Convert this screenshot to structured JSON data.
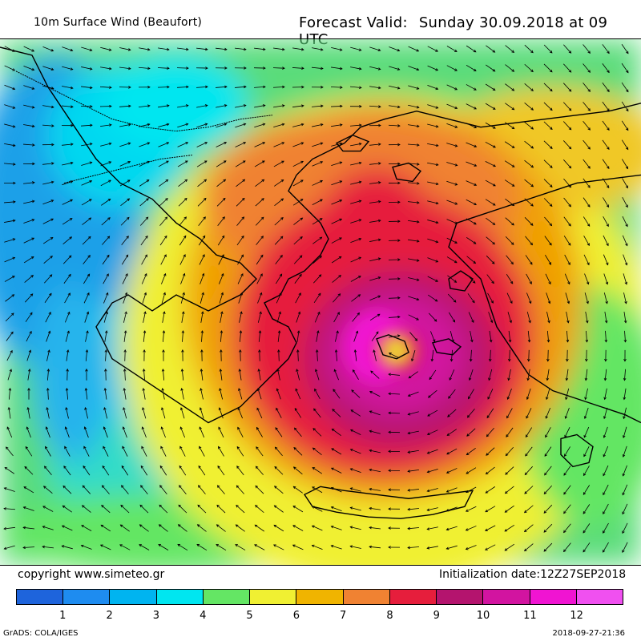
{
  "header": {
    "title": "10m Surface Wind (Beaufort)",
    "valid_label": "Forecast Valid:",
    "valid_value": "Sunday 30.09.2018 at 09 UTC"
  },
  "footer": {
    "copyright": "copyright www.simeteo.gr",
    "initialization": "Initialization date:12Z27SEP2018",
    "software": "GrADS: COLA/IGES",
    "timestamp": "2018-09-27-21:36"
  },
  "colorbar": {
    "colors": [
      "#1e64dc",
      "#1e8cf0",
      "#00b4f0",
      "#00e6f0",
      "#64e664",
      "#f0f032",
      "#f0b400",
      "#f08232",
      "#e61e3c",
      "#b4146e",
      "#d214a0",
      "#f014d2",
      "#f050f0"
    ],
    "labels": [
      "1",
      "2",
      "3",
      "4",
      "5",
      "6",
      "7",
      "8",
      "9",
      "10",
      "11",
      "12"
    ]
  }
}
